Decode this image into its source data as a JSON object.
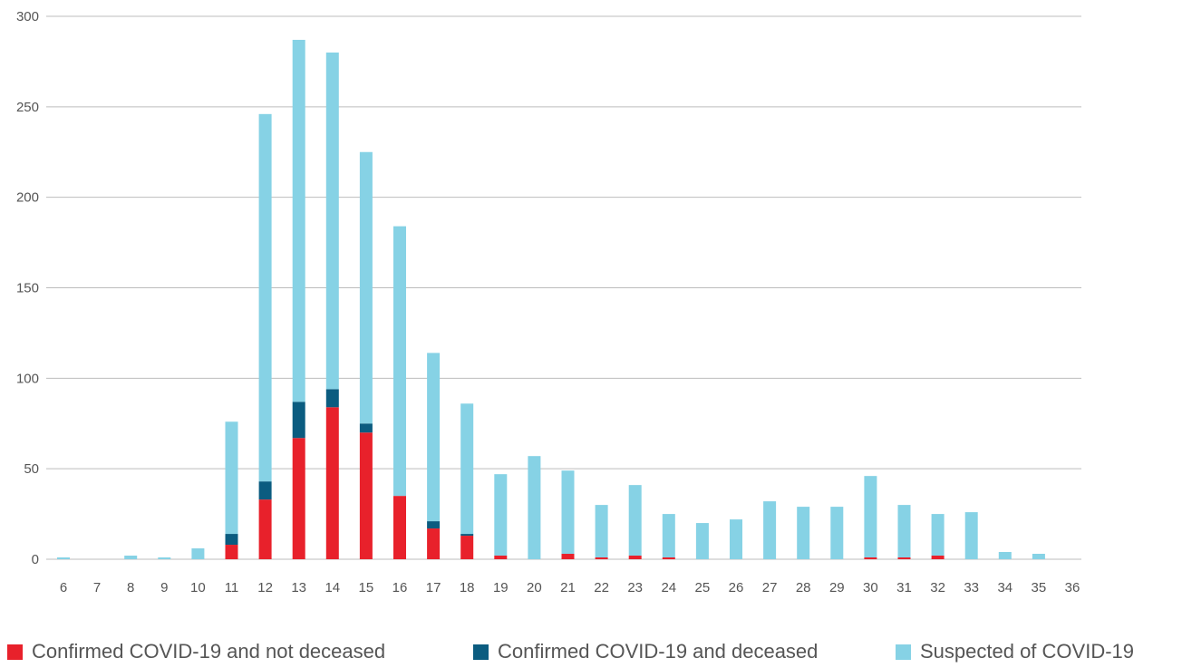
{
  "chart_data": {
    "type": "bar",
    "stacked": true,
    "categories": [
      "6",
      "7",
      "8",
      "9",
      "10",
      "11",
      "12",
      "13",
      "14",
      "15",
      "16",
      "17",
      "18",
      "19",
      "20",
      "21",
      "22",
      "23",
      "24",
      "25",
      "26",
      "27",
      "28",
      "29",
      "30",
      "31",
      "32",
      "33",
      "34",
      "35",
      "36"
    ],
    "series": [
      {
        "name": "Confirmed COVID-19 and not deceased",
        "color": "#e8212b",
        "values": [
          0,
          0,
          0,
          0,
          0,
          8,
          33,
          67,
          84,
          70,
          35,
          17,
          13,
          2,
          0,
          3,
          1,
          2,
          1,
          0,
          0,
          0,
          0,
          0,
          1,
          1,
          2,
          0,
          0,
          0,
          0
        ]
      },
      {
        "name": "Confirmed COVID-19 and deceased",
        "color": "#0b5c80",
        "values": [
          0,
          0,
          0,
          0,
          0,
          6,
          10,
          20,
          10,
          5,
          0,
          4,
          1,
          0,
          0,
          0,
          0,
          0,
          0,
          0,
          0,
          0,
          0,
          0,
          0,
          0,
          0,
          0,
          0,
          0,
          0
        ]
      },
      {
        "name": "Suspected of COVID-19",
        "color": "#86d2e5",
        "values": [
          1,
          0,
          2,
          1,
          6,
          62,
          203,
          200,
          186,
          150,
          149,
          93,
          72,
          45,
          57,
          46,
          29,
          39,
          24,
          20,
          22,
          32,
          29,
          29,
          45,
          29,
          23,
          26,
          4,
          3,
          0
        ]
      }
    ],
    "yticks": [
      "0",
      "50",
      "100",
      "150",
      "200",
      "250",
      "300"
    ],
    "ylim": [
      0,
      300
    ],
    "grid": true,
    "legend_position": "bottom",
    "title": "",
    "xlabel": "",
    "ylabel": ""
  }
}
